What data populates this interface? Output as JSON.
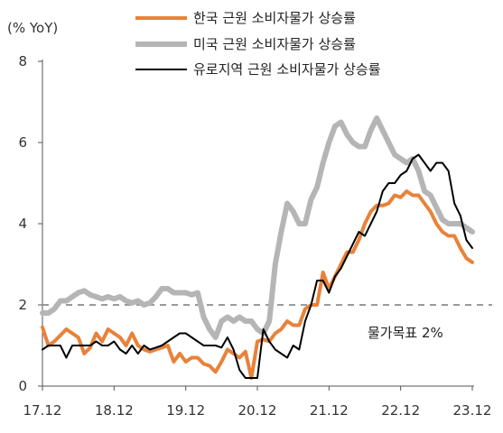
{
  "chart_data": {
    "type": "line",
    "title": "",
    "unit_label": "(% YoY)",
    "xlabel": "",
    "ylabel": "",
    "ylim": [
      0,
      8
    ],
    "yticks": [
      "0",
      "2",
      "4",
      "6",
      "8"
    ],
    "xticks": [
      "17.12",
      "18.12",
      "19.12",
      "20.12",
      "21.12",
      "22.12",
      "23.12"
    ],
    "x_start": "2017-12",
    "grid": false,
    "legend_position": "top",
    "reference_line": {
      "value": 2,
      "label": "물가목표 2%",
      "color": "#9a9a9a",
      "style": "dashed"
    },
    "series": [
      {
        "name": "한국 근원 소비자물가 상승률",
        "color": "#E8823A",
        "width": 4,
        "values": [
          1.45,
          1.0,
          1.1,
          1.25,
          1.4,
          1.3,
          1.2,
          0.8,
          0.95,
          1.3,
          1.1,
          1.4,
          1.3,
          1.2,
          1.0,
          1.3,
          1.0,
          0.9,
          0.85,
          0.9,
          0.95,
          1.0,
          0.6,
          0.8,
          0.6,
          0.7,
          0.7,
          0.55,
          0.5,
          0.35,
          0.6,
          0.9,
          0.8,
          0.7,
          0.85,
          0.2,
          1.1,
          1.15,
          1.1,
          1.3,
          1.4,
          1.6,
          1.5,
          1.5,
          1.9,
          2.0,
          2.0,
          2.8,
          2.4,
          2.7,
          3.0,
          3.3,
          3.3,
          3.6,
          4.0,
          4.3,
          4.45,
          4.45,
          4.5,
          4.7,
          4.65,
          4.8,
          4.7,
          4.7,
          4.5,
          4.3,
          4.0,
          3.8,
          3.7,
          3.7,
          3.4,
          3.15,
          3.05
        ]
      },
      {
        "name": "미국 근원 소비자물가 상승률",
        "color": "#B5B5B5",
        "width": 6,
        "values": [
          1.8,
          1.8,
          1.9,
          2.1,
          2.1,
          2.2,
          2.3,
          2.35,
          2.25,
          2.2,
          2.15,
          2.2,
          2.15,
          2.2,
          2.1,
          2.05,
          2.1,
          2.0,
          2.05,
          2.2,
          2.4,
          2.4,
          2.3,
          2.3,
          2.3,
          2.25,
          2.3,
          1.7,
          1.4,
          1.2,
          1.6,
          1.7,
          1.6,
          1.7,
          1.6,
          1.6,
          1.4,
          1.3,
          1.6,
          3.0,
          3.8,
          4.5,
          4.3,
          4.0,
          4.0,
          4.6,
          4.9,
          5.5,
          6.0,
          6.4,
          6.5,
          6.2,
          6.0,
          5.9,
          5.9,
          6.3,
          6.6,
          6.3,
          6.0,
          5.7,
          5.6,
          5.5,
          5.6,
          5.3,
          4.8,
          4.7,
          4.4,
          4.1,
          4.0,
          4.0,
          4.0,
          3.9,
          3.8
        ]
      },
      {
        "name": "유로지역 근원 소비자물가 상승률",
        "color": "#000000",
        "width": 2,
        "values": [
          0.9,
          1.0,
          1.0,
          1.0,
          0.7,
          1.0,
          1.0,
          1.0,
          1.0,
          1.1,
          1.0,
          1.0,
          1.1,
          0.9,
          0.8,
          1.0,
          0.8,
          1.0,
          0.9,
          0.95,
          1.0,
          1.1,
          1.2,
          1.3,
          1.3,
          1.2,
          1.1,
          1.0,
          1.0,
          1.0,
          0.95,
          1.2,
          0.9,
          0.4,
          0.2,
          0.2,
          0.2,
          1.4,
          1.1,
          0.9,
          0.8,
          0.7,
          1.0,
          0.9,
          1.6,
          2.0,
          2.6,
          2.6,
          2.3,
          2.7,
          2.9,
          3.2,
          3.5,
          3.8,
          3.7,
          4.0,
          4.3,
          4.8,
          5.0,
          5.0,
          5.2,
          5.3,
          5.6,
          5.7,
          5.5,
          5.3,
          5.5,
          5.5,
          5.3,
          4.5,
          4.2,
          3.6,
          3.4
        ]
      }
    ]
  }
}
